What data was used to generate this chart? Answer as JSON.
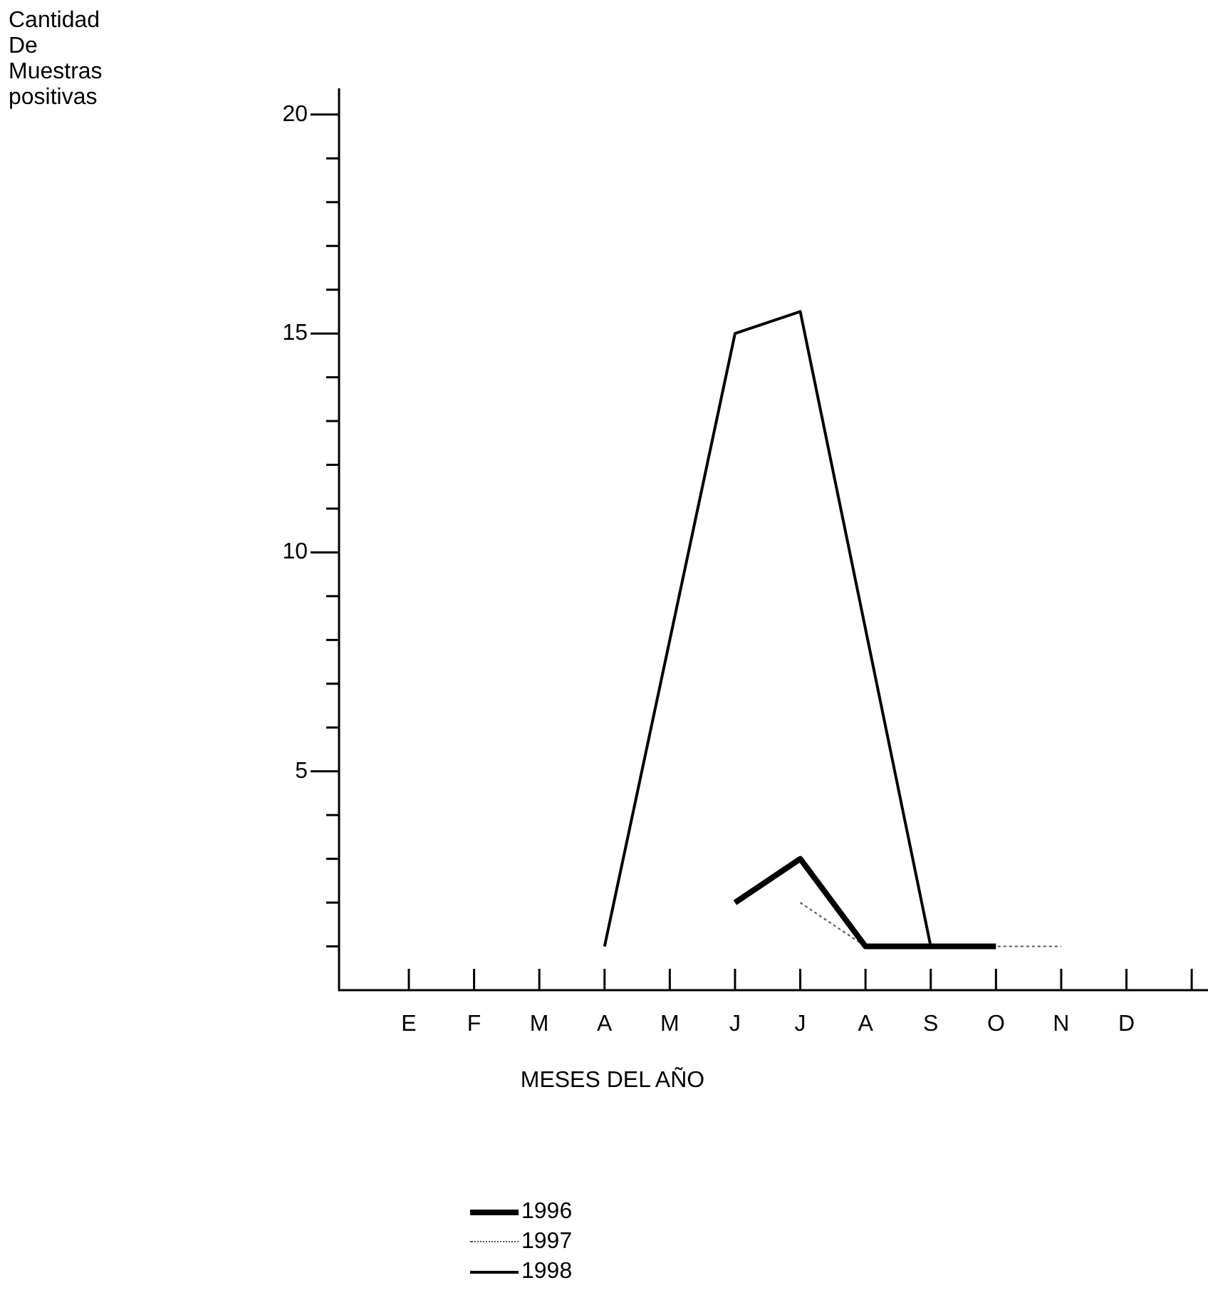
{
  "chart_data": {
    "type": "line",
    "annotations": [
      "Cantidad De Muestras positivas"
    ],
    "xlabel": "MESES DEL AÑO",
    "categories": [
      "E",
      "F",
      "M",
      "A",
      "M",
      "J",
      "J",
      "A",
      "S",
      "O",
      "N",
      "D",
      null
    ],
    "ylim": [
      0,
      20.6
    ],
    "yticks": [
      {
        "value": 1,
        "label": null
      },
      {
        "value": 2,
        "label": null
      },
      {
        "value": 3,
        "label": null
      },
      {
        "value": 4,
        "label": null
      },
      5,
      {
        "value": 6,
        "label": null
      },
      {
        "value": 7,
        "label": null
      },
      {
        "value": 8,
        "label": null
      },
      {
        "value": 9,
        "label": null
      },
      10,
      {
        "value": 11,
        "label": null
      },
      {
        "value": 12,
        "label": null
      },
      {
        "value": 13,
        "label": null
      },
      {
        "value": 14,
        "label": null
      },
      15,
      {
        "value": 16,
        "label": null
      },
      {
        "value": 17,
        "label": null
      },
      {
        "value": 18,
        "label": null
      },
      {
        "value": 19,
        "label": null
      },
      20
    ],
    "legend": "bottom",
    "marker": "none",
    "grid": false,
    "series": [
      {
        "name": "1996",
        "color": "#000000",
        "line_style": "solid",
        "values": [
          null,
          null,
          null,
          null,
          null,
          2,
          3,
          1,
          1,
          1,
          null,
          null,
          null
        ]
      },
      {
        "name": "1997",
        "color": "#555555",
        "line_style": "dotted",
        "values": [
          null,
          null,
          null,
          null,
          null,
          null,
          2,
          1,
          1,
          1,
          1,
          null,
          null
        ]
      },
      {
        "name": "1998",
        "color": "#000000",
        "line_style": "solid",
        "values": [
          null,
          null,
          null,
          1,
          null,
          15,
          15.5,
          null,
          1,
          null,
          null,
          null,
          null
        ]
      }
    ]
  }
}
